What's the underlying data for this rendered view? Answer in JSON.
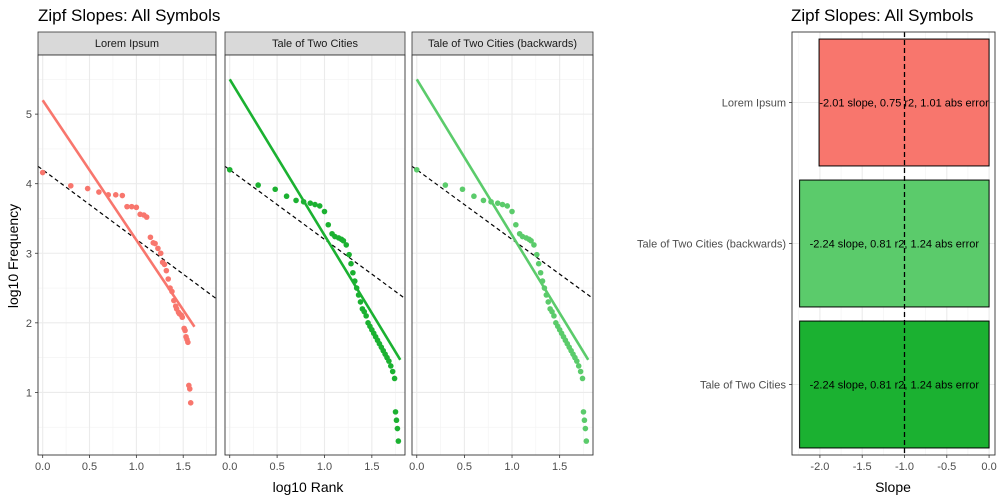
{
  "chart_data": [
    {
      "type": "scatter",
      "title": "Zipf Slopes: All Symbols",
      "xlabel": "log10 Rank",
      "ylabel": "log10 Frequency",
      "xlim": [
        -0.05,
        1.85
      ],
      "ylim": [
        0.1,
        5.85
      ],
      "x_ticks": [
        0.0,
        0.5,
        1.0,
        1.5
      ],
      "x_tick_labels": [
        "0.0",
        "0.5",
        "1.0",
        "1.5"
      ],
      "y_ticks": [
        1,
        2,
        3,
        4,
        5
      ],
      "y_tick_labels": [
        "1",
        "2",
        "3",
        "4",
        "5"
      ],
      "reference_line": {
        "intercept": 4.2,
        "slope": -1.0,
        "style": "dashed",
        "color": "#000000"
      },
      "grid": true,
      "facets": [
        {
          "name": "Lorem Ipsum",
          "color": "#F8766D",
          "fit": {
            "intercept": 5.2,
            "slope": -2.01,
            "x_range": [
              0.0,
              1.62
            ]
          },
          "points": [
            [
              0.0,
              4.16
            ],
            [
              0.3,
              3.97
            ],
            [
              0.48,
              3.93
            ],
            [
              0.6,
              3.88
            ],
            [
              0.7,
              3.84
            ],
            [
              0.78,
              3.84
            ],
            [
              0.85,
              3.83
            ],
            [
              0.9,
              3.67
            ],
            [
              0.95,
              3.67
            ],
            [
              1.0,
              3.66
            ],
            [
              1.04,
              3.56
            ],
            [
              1.08,
              3.55
            ],
            [
              1.11,
              3.52
            ],
            [
              1.15,
              3.23
            ],
            [
              1.18,
              3.15
            ],
            [
              1.2,
              3.14
            ],
            [
              1.23,
              3.07
            ],
            [
              1.26,
              3.0
            ],
            [
              1.28,
              2.87
            ],
            [
              1.3,
              2.84
            ],
            [
              1.32,
              2.75
            ],
            [
              1.34,
              2.63
            ],
            [
              1.36,
              2.5
            ],
            [
              1.38,
              2.45
            ],
            [
              1.4,
              2.32
            ],
            [
              1.42,
              2.24
            ],
            [
              1.43,
              2.2
            ],
            [
              1.45,
              2.15
            ],
            [
              1.46,
              2.13
            ],
            [
              1.48,
              2.11
            ],
            [
              1.49,
              2.08
            ],
            [
              1.51,
              1.92
            ],
            [
              1.52,
              1.89
            ],
            [
              1.53,
              1.8
            ],
            [
              1.54,
              1.76
            ],
            [
              1.55,
              1.72
            ],
            [
              1.56,
              1.1
            ],
            [
              1.57,
              1.05
            ],
            [
              1.58,
              0.85
            ]
          ]
        },
        {
          "name": "Tale of Two Cities",
          "color": "#1BB131",
          "fit": {
            "intercept": 5.5,
            "slope": -2.24,
            "x_range": [
              0.0,
              1.8
            ]
          },
          "points": [
            [
              0.0,
              4.2
            ],
            [
              0.3,
              3.98
            ],
            [
              0.48,
              3.92
            ],
            [
              0.6,
              3.82
            ],
            [
              0.7,
              3.76
            ],
            [
              0.78,
              3.74
            ],
            [
              0.85,
              3.72
            ],
            [
              0.9,
              3.7
            ],
            [
              0.95,
              3.68
            ],
            [
              1.0,
              3.6
            ],
            [
              1.04,
              3.41
            ],
            [
              1.08,
              3.28
            ],
            [
              1.11,
              3.24
            ],
            [
              1.15,
              3.22
            ],
            [
              1.18,
              3.2
            ],
            [
              1.2,
              3.18
            ],
            [
              1.23,
              3.12
            ],
            [
              1.26,
              2.98
            ],
            [
              1.28,
              2.85
            ],
            [
              1.3,
              2.72
            ],
            [
              1.32,
              2.6
            ],
            [
              1.34,
              2.5
            ],
            [
              1.36,
              2.4
            ],
            [
              1.38,
              2.3
            ],
            [
              1.4,
              2.2
            ],
            [
              1.42,
              2.16
            ],
            [
              1.44,
              2.1
            ],
            [
              1.46,
              2.0
            ],
            [
              1.48,
              1.95
            ],
            [
              1.5,
              1.9
            ],
            [
              1.52,
              1.85
            ],
            [
              1.54,
              1.8
            ],
            [
              1.56,
              1.75
            ],
            [
              1.58,
              1.7
            ],
            [
              1.6,
              1.65
            ],
            [
              1.62,
              1.6
            ],
            [
              1.64,
              1.55
            ],
            [
              1.66,
              1.5
            ],
            [
              1.68,
              1.45
            ],
            [
              1.7,
              1.38
            ],
            [
              1.72,
              1.3
            ],
            [
              1.74,
              1.2
            ],
            [
              1.75,
              0.72
            ],
            [
              1.76,
              0.6
            ],
            [
              1.77,
              0.48
            ],
            [
              1.78,
              0.3
            ]
          ]
        },
        {
          "name": "Tale of Two Cities (backwards)",
          "color": "#5BCB6B",
          "fit": {
            "intercept": 5.5,
            "slope": -2.24,
            "x_range": [
              0.0,
              1.8
            ]
          },
          "points": [
            [
              0.0,
              4.2
            ],
            [
              0.3,
              3.98
            ],
            [
              0.48,
              3.92
            ],
            [
              0.6,
              3.82
            ],
            [
              0.7,
              3.76
            ],
            [
              0.78,
              3.74
            ],
            [
              0.85,
              3.72
            ],
            [
              0.9,
              3.7
            ],
            [
              0.95,
              3.68
            ],
            [
              1.0,
              3.6
            ],
            [
              1.04,
              3.41
            ],
            [
              1.08,
              3.28
            ],
            [
              1.11,
              3.24
            ],
            [
              1.15,
              3.22
            ],
            [
              1.18,
              3.2
            ],
            [
              1.2,
              3.18
            ],
            [
              1.23,
              3.12
            ],
            [
              1.26,
              2.98
            ],
            [
              1.28,
              2.85
            ],
            [
              1.3,
              2.72
            ],
            [
              1.32,
              2.6
            ],
            [
              1.34,
              2.5
            ],
            [
              1.36,
              2.4
            ],
            [
              1.38,
              2.3
            ],
            [
              1.4,
              2.2
            ],
            [
              1.42,
              2.16
            ],
            [
              1.44,
              2.1
            ],
            [
              1.46,
              2.0
            ],
            [
              1.48,
              1.95
            ],
            [
              1.5,
              1.9
            ],
            [
              1.52,
              1.85
            ],
            [
              1.54,
              1.8
            ],
            [
              1.56,
              1.75
            ],
            [
              1.58,
              1.7
            ],
            [
              1.6,
              1.65
            ],
            [
              1.62,
              1.6
            ],
            [
              1.64,
              1.55
            ],
            [
              1.66,
              1.5
            ],
            [
              1.68,
              1.45
            ],
            [
              1.7,
              1.38
            ],
            [
              1.72,
              1.3
            ],
            [
              1.74,
              1.2
            ],
            [
              1.75,
              0.72
            ],
            [
              1.76,
              0.6
            ],
            [
              1.77,
              0.48
            ],
            [
              1.78,
              0.3
            ]
          ]
        }
      ]
    },
    {
      "type": "bar",
      "orientation": "horizontal",
      "title": "Zipf Slopes: All Symbols",
      "xlabel": "Slope",
      "ylabel": "",
      "xlim": [
        -2.33,
        0.07
      ],
      "x_ticks": [
        -2.0,
        -1.5,
        -1.0,
        -0.5,
        0.0
      ],
      "x_tick_labels": [
        "-2.0",
        "-1.5",
        "-1.0",
        "-0.5",
        "0.0"
      ],
      "reference_line": {
        "x": -1.0,
        "style": "dashed",
        "color": "#000000"
      },
      "grid": true,
      "categories": [
        "Lorem Ipsum",
        "Tale of Two Cities (backwards)",
        "Tale of Two Cities"
      ],
      "values": [
        -2.01,
        -2.24,
        -2.24
      ],
      "colors": [
        "#F8766D",
        "#5BCB6B",
        "#1BB131"
      ],
      "labels": [
        "-2.01 slope, 0.75 r2, 1.01 abs error",
        "-2.24 slope, 0.81 r2, 1.24 abs error",
        "-2.24 slope, 0.81 r2, 1.24 abs error"
      ]
    }
  ]
}
